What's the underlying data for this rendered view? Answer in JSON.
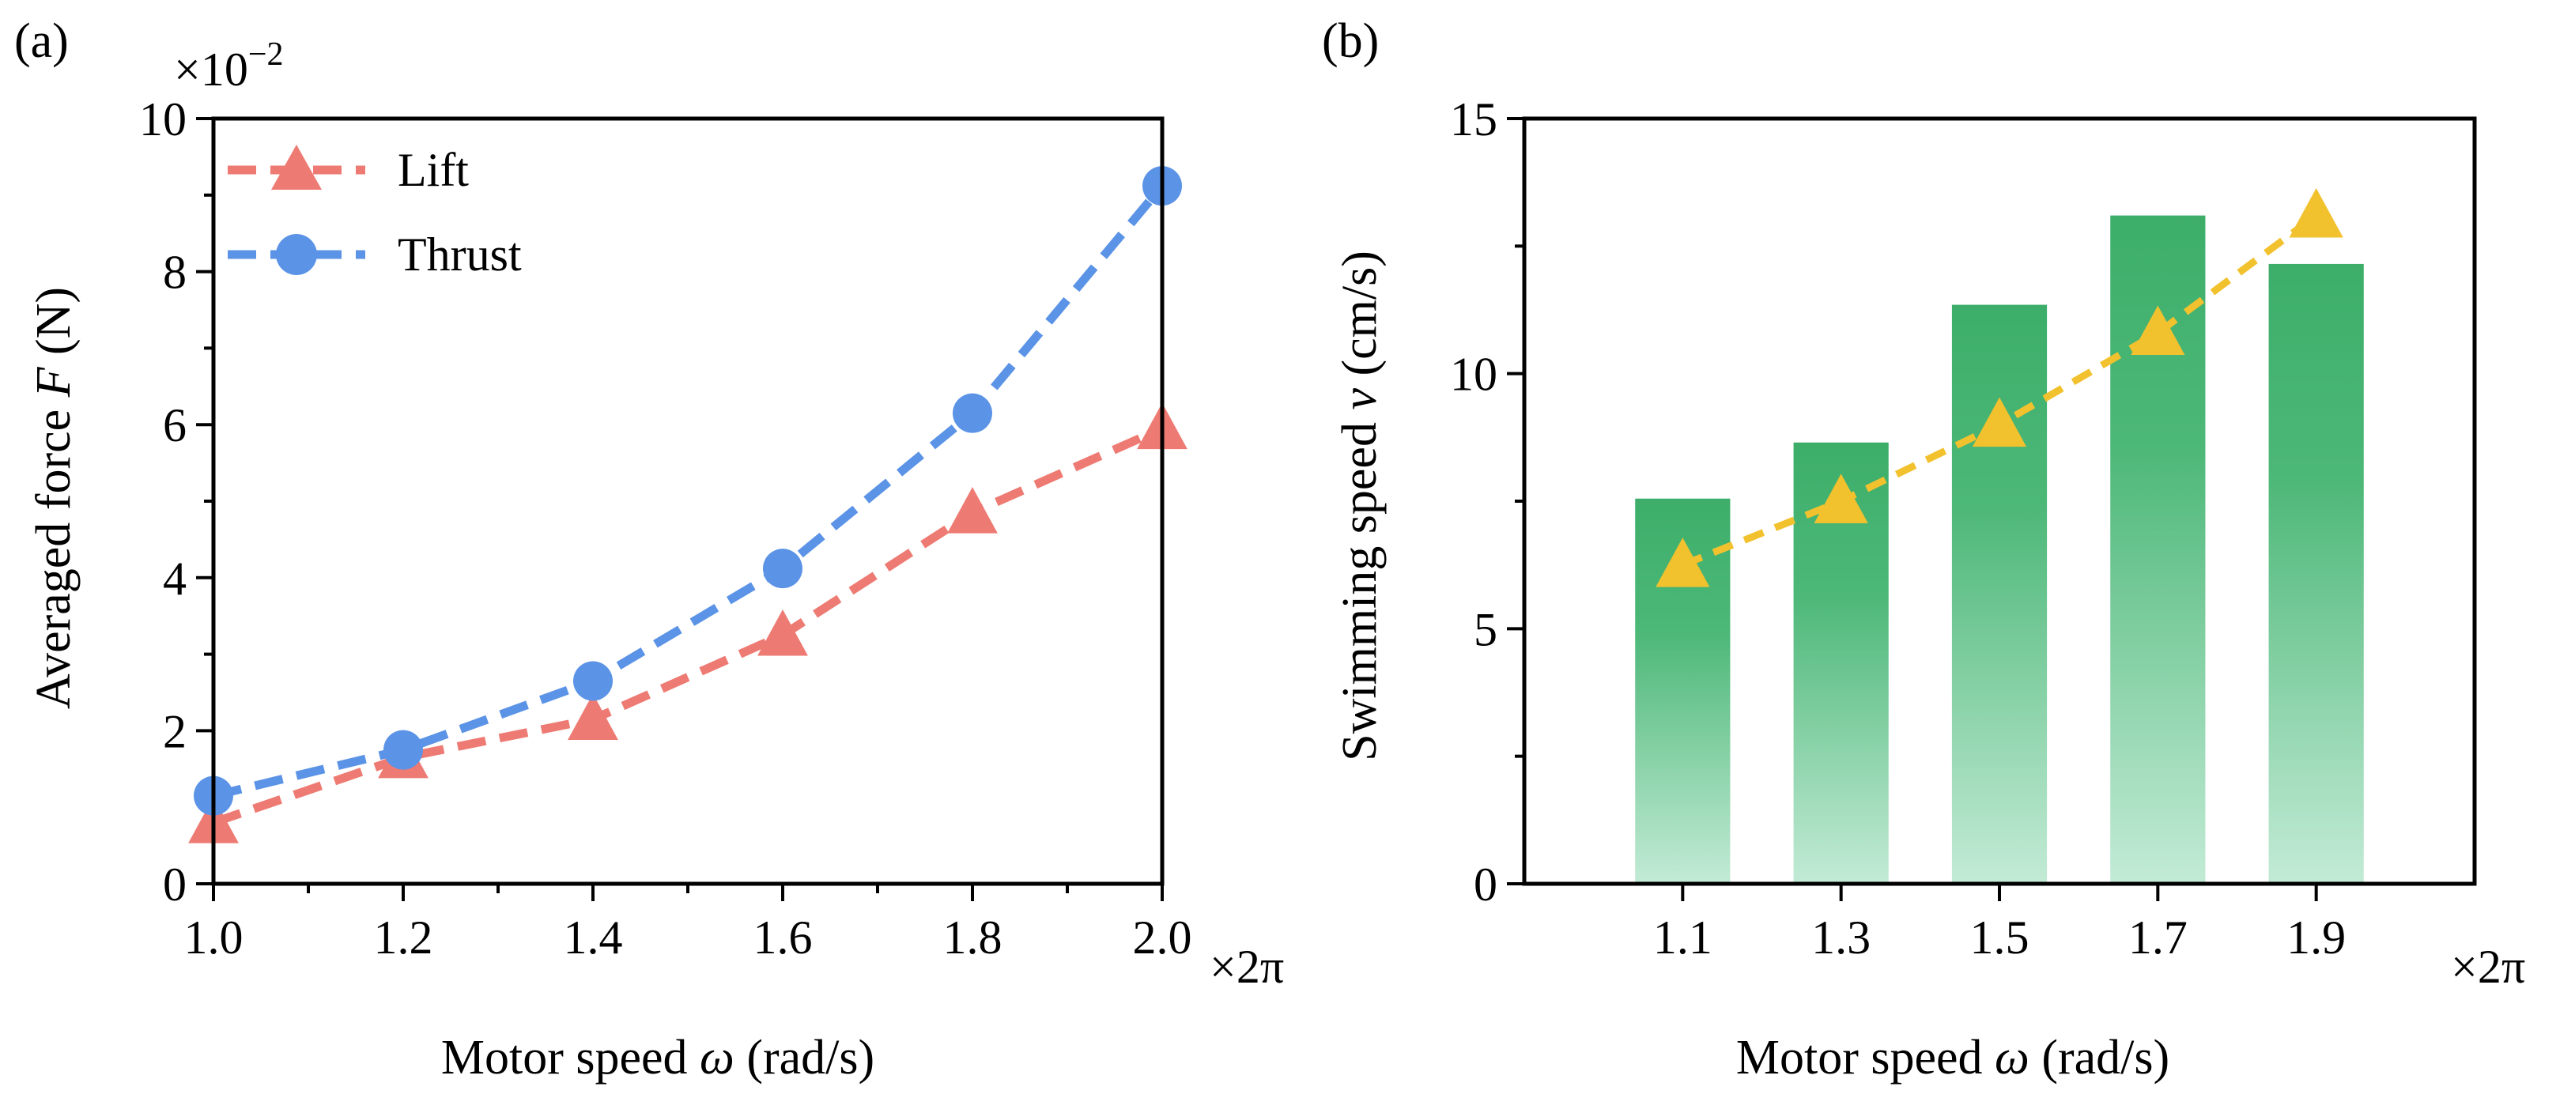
{
  "chart_data": [
    {
      "type": "line",
      "panel_label": "(a)",
      "x": [
        1.0,
        1.2,
        1.4,
        1.6,
        1.8,
        2.0
      ],
      "series": [
        {
          "name": "Lift",
          "marker": "triangle",
          "color": "#EE7B73",
          "values": [
            0.8,
            1.65,
            2.15,
            3.25,
            4.85,
            5.95
          ]
        },
        {
          "name": "Thrust",
          "marker": "circle",
          "color": "#5B93E6",
          "values": [
            1.15,
            1.75,
            2.65,
            4.12,
            6.15,
            9.12
          ]
        }
      ],
      "xlim": [
        1.0,
        2.0
      ],
      "ylim": [
        0,
        10
      ],
      "x_ticks": [
        "1.0",
        "1.2",
        "1.4",
        "1.6",
        "1.8",
        "2.0"
      ],
      "x_tick_values": [
        1.0,
        1.2,
        1.4,
        1.6,
        1.8,
        2.0
      ],
      "y_ticks": [
        "0",
        "2",
        "4",
        "6",
        "8",
        "10"
      ],
      "y_tick_values": [
        0,
        2,
        4,
        6,
        8,
        10
      ],
      "x_unit_suffix": "×2π",
      "y_multiplier": "×10",
      "y_multiplier_exp": "−2",
      "xlabel": "Motor speed ω (rad/s)",
      "xlabel_parts": {
        "text": "Motor speed ",
        "symbol": "ω",
        "unit": " (rad/s)"
      },
      "ylabel": "Averaged force F (N)",
      "ylabel_parts": {
        "text": "Averaged force ",
        "symbol": "F",
        "unit": " (N)"
      },
      "legend_position": "top-left"
    },
    {
      "type": "bar",
      "panel_label": "(b)",
      "categories": [
        "1.1",
        "1.3",
        "1.5",
        "1.7",
        "1.9"
      ],
      "x": [
        1.1,
        1.3,
        1.5,
        1.7,
        1.9
      ],
      "series": [
        {
          "name": "bars",
          "type": "bar",
          "color_top": "#3DAE6A",
          "color_bottom": "#C3EBD6",
          "values": [
            7.55,
            8.65,
            11.35,
            13.1,
            12.15
          ]
        },
        {
          "name": "line",
          "type": "line",
          "marker": "triangle",
          "color": "#F2C12E",
          "values": [
            6.25,
            7.5,
            9.0,
            10.8,
            13.1
          ]
        }
      ],
      "xlim": [
        0.9,
        2.1
      ],
      "ylim": [
        0,
        15
      ],
      "y_ticks": [
        "0",
        "5",
        "10",
        "15"
      ],
      "y_tick_values": [
        0,
        5,
        10,
        15
      ],
      "x_unit_suffix": "×2π",
      "xlabel": "Motor speed ω (rad/s)",
      "xlabel_parts": {
        "text": "Motor speed ",
        "symbol": "ω",
        "unit": " (rad/s)"
      },
      "ylabel": "Swimming speed v (cm/s)",
      "ylabel_parts": {
        "text": "Swimming speed ",
        "symbol": "v",
        "unit": " (cm/s)"
      }
    }
  ]
}
